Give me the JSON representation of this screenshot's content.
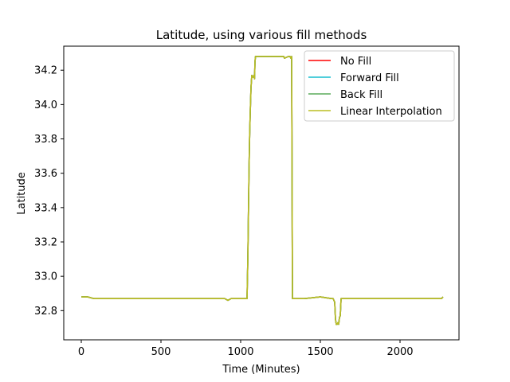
{
  "chart_data": {
    "type": "line",
    "title": "Latitude, using various fill methods",
    "xlabel": "Time (Minutes)",
    "ylabel": "Latitude",
    "xlim": [
      -110,
      2370
    ],
    "ylim": [
      32.63,
      34.34
    ],
    "xticks": [
      0,
      500,
      1000,
      1500,
      2000
    ],
    "xtick_labels": [
      "0",
      "500",
      "1000",
      "1500",
      "2000"
    ],
    "yticks": [
      32.8,
      33.0,
      33.2,
      33.4,
      33.6,
      33.8,
      34.0,
      34.2
    ],
    "ytick_labels": [
      "32.8",
      "33.0",
      "33.2",
      "33.4",
      "33.6",
      "33.8",
      "34.0",
      "34.2"
    ],
    "grid": false,
    "legend_position": "top-right",
    "series": [
      {
        "name": "No Fill",
        "color": "#ff0000",
        "x": [
          0,
          40,
          80,
          300,
          700,
          900,
          920,
          940,
          1040,
          1045,
          1050,
          1053,
          1056,
          1060,
          1065,
          1070,
          1075,
          1080,
          1083,
          1087,
          1090,
          1093,
          1096,
          1100,
          1105,
          1150,
          1200,
          1250,
          1270,
          1275,
          1300,
          1310,
          1315,
          1320,
          1325,
          1330,
          1400,
          1500,
          1570,
          1580,
          1590,
          1595,
          1600,
          1605,
          1610,
          1615,
          1620,
          1625,
          1630,
          1640,
          1650,
          1700,
          2000,
          2260,
          2270
        ],
        "y": [
          32.88,
          32.88,
          32.87,
          32.87,
          32.87,
          32.87,
          32.86,
          32.87,
          32.87,
          33.1,
          33.45,
          33.65,
          33.8,
          33.95,
          34.1,
          34.17,
          34.16,
          34.16,
          34.17,
          34.15,
          34.25,
          34.28,
          34.28,
          34.28,
          34.28,
          34.28,
          34.28,
          34.28,
          34.28,
          34.27,
          34.28,
          34.28,
          34.27,
          34.28,
          32.87,
          32.87,
          32.87,
          32.88,
          32.87,
          32.87,
          32.85,
          32.75,
          32.72,
          32.72,
          32.73,
          32.72,
          32.76,
          32.77,
          32.87,
          32.87,
          32.87,
          32.87,
          32.87,
          32.87,
          32.88
        ]
      },
      {
        "name": "Forward Fill",
        "color": "#17becf",
        "x": [
          0,
          40,
          80,
          300,
          700,
          900,
          920,
          940,
          1040,
          1045,
          1050,
          1053,
          1056,
          1060,
          1065,
          1070,
          1075,
          1080,
          1083,
          1087,
          1090,
          1093,
          1096,
          1100,
          1105,
          1150,
          1200,
          1250,
          1270,
          1275,
          1300,
          1310,
          1315,
          1320,
          1325,
          1330,
          1400,
          1500,
          1570,
          1580,
          1590,
          1595,
          1600,
          1605,
          1610,
          1615,
          1620,
          1625,
          1630,
          1640,
          1650,
          1700,
          2000,
          2260,
          2270
        ],
        "y": [
          32.88,
          32.88,
          32.87,
          32.87,
          32.87,
          32.87,
          32.86,
          32.87,
          32.87,
          33.1,
          33.45,
          33.65,
          33.8,
          33.95,
          34.1,
          34.17,
          34.16,
          34.16,
          34.17,
          34.15,
          34.25,
          34.28,
          34.28,
          34.28,
          34.28,
          34.28,
          34.28,
          34.28,
          34.28,
          34.27,
          34.28,
          34.28,
          34.27,
          34.28,
          32.87,
          32.87,
          32.87,
          32.88,
          32.87,
          32.87,
          32.85,
          32.75,
          32.72,
          32.72,
          32.73,
          32.72,
          32.76,
          32.77,
          32.87,
          32.87,
          32.87,
          32.87,
          32.87,
          32.87,
          32.88
        ]
      },
      {
        "name": "Back Fill",
        "color": "#5aab5a",
        "x": [
          0,
          40,
          80,
          300,
          700,
          900,
          920,
          940,
          1040,
          1045,
          1050,
          1053,
          1056,
          1060,
          1065,
          1070,
          1075,
          1080,
          1083,
          1087,
          1090,
          1093,
          1096,
          1100,
          1105,
          1150,
          1200,
          1250,
          1270,
          1275,
          1300,
          1310,
          1315,
          1320,
          1325,
          1330,
          1400,
          1500,
          1570,
          1580,
          1590,
          1595,
          1600,
          1605,
          1610,
          1615,
          1620,
          1625,
          1630,
          1640,
          1650,
          1700,
          2000,
          2260,
          2270
        ],
        "y": [
          32.88,
          32.88,
          32.87,
          32.87,
          32.87,
          32.87,
          32.86,
          32.87,
          32.87,
          33.1,
          33.45,
          33.65,
          33.8,
          33.95,
          34.1,
          34.17,
          34.16,
          34.16,
          34.17,
          34.15,
          34.25,
          34.28,
          34.28,
          34.28,
          34.28,
          34.28,
          34.28,
          34.28,
          34.28,
          34.27,
          34.28,
          34.28,
          34.27,
          34.28,
          32.87,
          32.87,
          32.87,
          32.88,
          32.87,
          32.87,
          32.85,
          32.75,
          32.72,
          32.72,
          32.73,
          32.72,
          32.76,
          32.77,
          32.87,
          32.87,
          32.87,
          32.87,
          32.87,
          32.87,
          32.88
        ]
      },
      {
        "name": "Linear Interpolation",
        "color": "#bcbd22",
        "x": [
          0,
          40,
          80,
          300,
          700,
          900,
          920,
          940,
          1040,
          1045,
          1050,
          1053,
          1056,
          1060,
          1065,
          1070,
          1075,
          1080,
          1083,
          1087,
          1090,
          1093,
          1096,
          1100,
          1105,
          1150,
          1200,
          1250,
          1270,
          1275,
          1300,
          1310,
          1315,
          1320,
          1325,
          1330,
          1400,
          1500,
          1570,
          1580,
          1590,
          1595,
          1600,
          1605,
          1610,
          1615,
          1620,
          1625,
          1630,
          1640,
          1650,
          1700,
          2000,
          2260,
          2270
        ],
        "y": [
          32.88,
          32.88,
          32.87,
          32.87,
          32.87,
          32.87,
          32.86,
          32.87,
          32.87,
          33.1,
          33.45,
          33.65,
          33.8,
          33.95,
          34.1,
          34.17,
          34.16,
          34.16,
          34.17,
          34.15,
          34.25,
          34.28,
          34.28,
          34.28,
          34.28,
          34.28,
          34.28,
          34.28,
          34.28,
          34.27,
          34.28,
          34.28,
          34.27,
          34.28,
          32.87,
          32.87,
          32.87,
          32.88,
          32.87,
          32.87,
          32.85,
          32.75,
          32.72,
          32.72,
          32.73,
          32.72,
          32.76,
          32.77,
          32.87,
          32.87,
          32.87,
          32.87,
          32.87,
          32.87,
          32.88
        ]
      }
    ]
  }
}
